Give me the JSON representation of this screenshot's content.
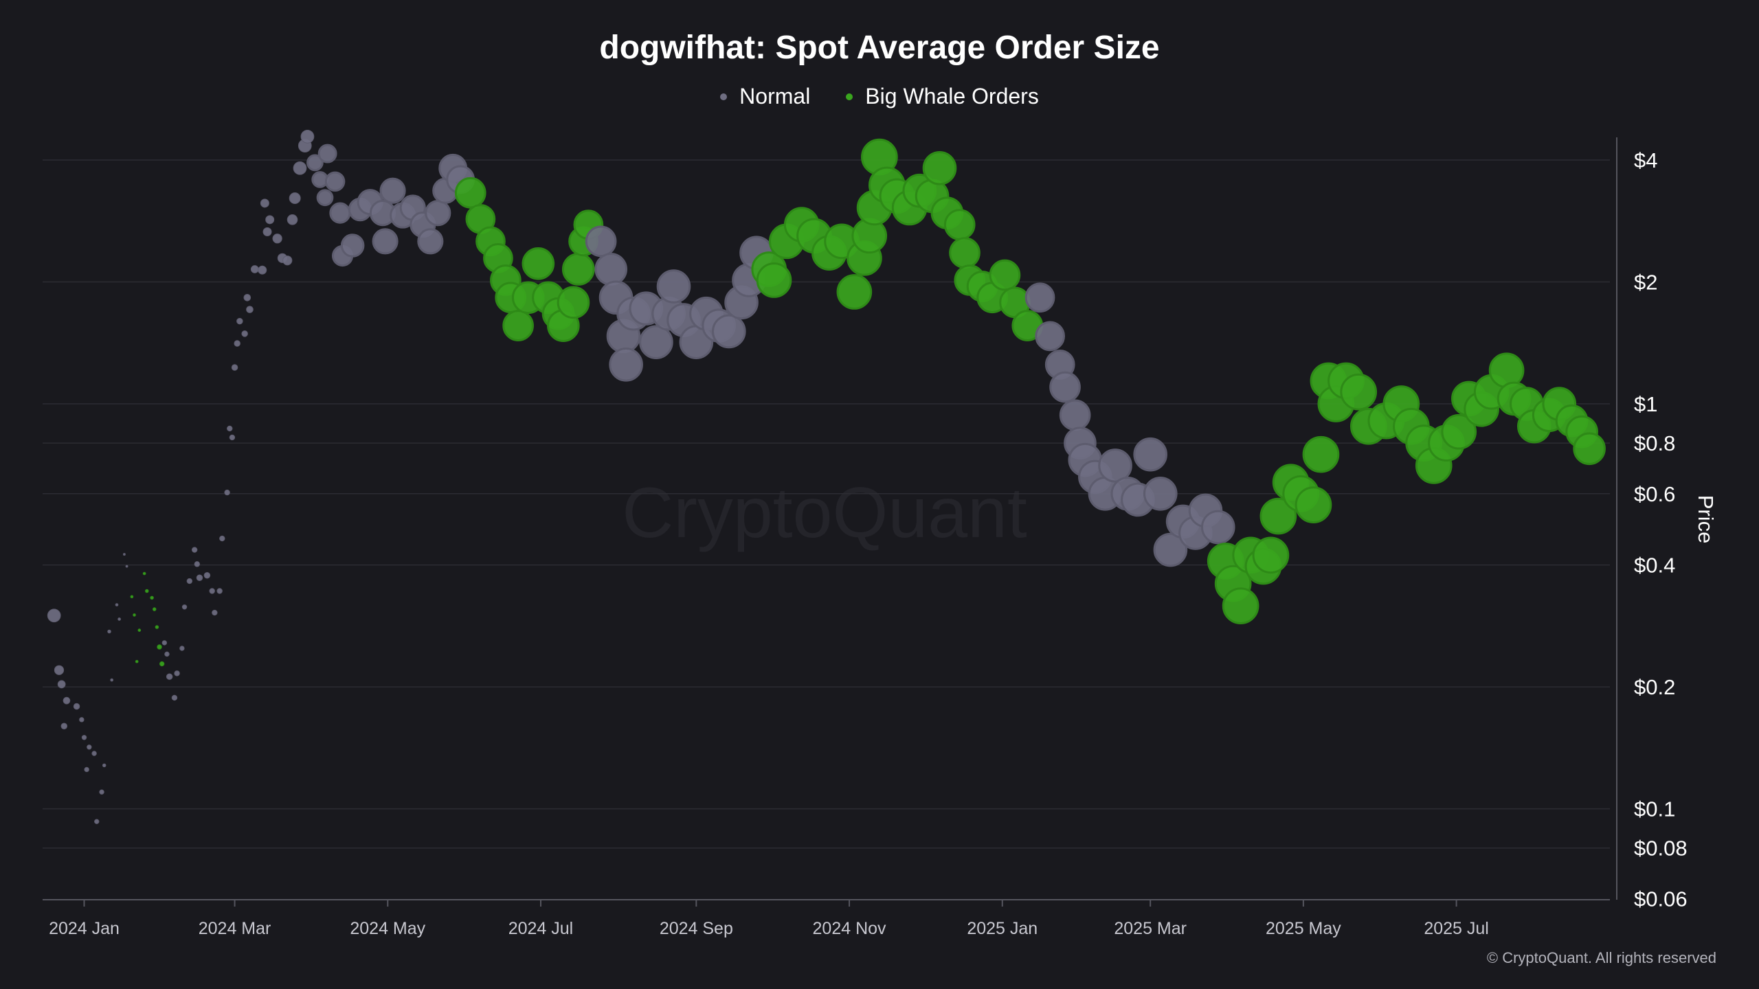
{
  "chart_data": {
    "type": "scatter",
    "title": "dogwifhat: Spot Average Order Size",
    "ylabel": "Price",
    "xlabel": "",
    "y_scale": "log",
    "ylim": [
      0.06,
      4.55
    ],
    "xlim": [
      "2023-12-16",
      "2025-09-05"
    ],
    "grid": true,
    "legend_position": "top",
    "watermark": "CryptoQuant",
    "copyright": "© CryptoQuant. All rights reserved",
    "colors": {
      "normal": "#6f6e82",
      "whale": "#3aa51e",
      "background": "#19191e"
    },
    "legend": [
      {
        "key": "normal",
        "label": "Normal"
      },
      {
        "key": "whale",
        "label": "Big Whale Orders"
      }
    ],
    "y_ticks": [
      {
        "value": 4,
        "label": "$4"
      },
      {
        "value": 2,
        "label": "$2"
      },
      {
        "value": 1,
        "label": "$1"
      },
      {
        "value": 0.8,
        "label": "$0.8"
      },
      {
        "value": 0.6,
        "label": "$0.6"
      },
      {
        "value": 0.4,
        "label": "$0.4"
      },
      {
        "value": 0.2,
        "label": "$0.2"
      },
      {
        "value": 0.1,
        "label": "$0.1"
      },
      {
        "value": 0.08,
        "label": "$0.08"
      },
      {
        "value": 0.06,
        "label": "$0.06"
      }
    ],
    "x_ticks": [
      {
        "date": "2024-01-01",
        "label": "2024 Jan"
      },
      {
        "date": "2024-03-01",
        "label": "2024 Mar"
      },
      {
        "date": "2024-05-01",
        "label": "2024 May"
      },
      {
        "date": "2024-07-01",
        "label": "2024 Jul"
      },
      {
        "date": "2024-09-01",
        "label": "2024 Sep"
      },
      {
        "date": "2024-11-01",
        "label": "2024 Nov"
      },
      {
        "date": "2025-01-01",
        "label": "2025 Jan"
      },
      {
        "date": "2025-03-01",
        "label": "2025 Mar"
      },
      {
        "date": "2025-05-01",
        "label": "2025 May"
      },
      {
        "date": "2025-07-01",
        "label": "2025 Jul"
      }
    ],
    "point_fields": [
      "date",
      "price",
      "category",
      "relative_order_size"
    ],
    "points": [
      [
        "2023-12-20",
        0.3,
        "normal",
        2
      ],
      [
        "2023-12-22",
        0.22,
        "normal",
        1.6
      ],
      [
        "2023-12-23",
        0.203,
        "normal",
        1.4
      ],
      [
        "2023-12-25",
        0.185,
        "normal",
        1.3
      ],
      [
        "2023-12-24",
        0.16,
        "normal",
        1.2
      ],
      [
        "2023-12-29",
        0.179,
        "normal",
        1.2
      ],
      [
        "2023-12-31",
        0.166,
        "normal",
        1
      ],
      [
        "2024-01-01",
        0.15,
        "normal",
        1
      ],
      [
        "2024-01-03",
        0.142,
        "normal",
        1
      ],
      [
        "2024-01-05",
        0.137,
        "normal",
        1
      ],
      [
        "2024-01-02",
        0.125,
        "normal",
        1
      ],
      [
        "2024-01-06",
        0.093,
        "normal",
        1
      ],
      [
        "2024-01-08",
        0.11,
        "normal",
        1
      ],
      [
        "2024-01-09",
        0.128,
        "normal",
        0.8
      ],
      [
        "2024-01-12",
        0.208,
        "normal",
        0.7
      ],
      [
        "2024-01-11",
        0.274,
        "normal",
        0.8
      ],
      [
        "2024-01-14",
        0.319,
        "normal",
        0.7
      ],
      [
        "2024-01-15",
        0.294,
        "normal",
        0.7
      ],
      [
        "2024-01-17",
        0.425,
        "normal",
        0.6
      ],
      [
        "2024-01-18",
        0.397,
        "normal",
        0.6
      ],
      [
        "2024-01-20",
        0.334,
        "whale",
        0.7
      ],
      [
        "2024-01-21",
        0.301,
        "whale",
        0.7
      ],
      [
        "2024-01-22",
        0.231,
        "whale",
        0.7
      ],
      [
        "2024-01-23",
        0.276,
        "whale",
        0.7
      ],
      [
        "2024-01-25",
        0.381,
        "whale",
        0.7
      ],
      [
        "2024-01-26",
        0.345,
        "whale",
        0.8
      ],
      [
        "2024-01-28",
        0.332,
        "whale",
        0.8
      ],
      [
        "2024-01-29",
        0.311,
        "whale",
        0.8
      ],
      [
        "2024-01-30",
        0.281,
        "whale",
        0.8
      ],
      [
        "2024-01-31",
        0.251,
        "whale",
        1
      ],
      [
        "2024-02-01",
        0.228,
        "whale",
        1
      ],
      [
        "2024-02-02",
        0.257,
        "normal",
        1
      ],
      [
        "2024-02-03",
        0.241,
        "normal",
        1
      ],
      [
        "2024-02-04",
        0.212,
        "normal",
        1.2
      ],
      [
        "2024-02-06",
        0.188,
        "normal",
        1.1
      ],
      [
        "2024-02-07",
        0.216,
        "normal",
        1.1
      ],
      [
        "2024-02-09",
        0.249,
        "normal",
        1
      ],
      [
        "2024-02-10",
        0.315,
        "normal",
        1
      ],
      [
        "2024-02-12",
        0.365,
        "normal",
        1.1
      ],
      [
        "2024-02-14",
        0.436,
        "normal",
        1.1
      ],
      [
        "2024-02-15",
        0.402,
        "normal",
        1.1
      ],
      [
        "2024-02-16",
        0.372,
        "normal",
        1.2
      ],
      [
        "2024-02-19",
        0.377,
        "normal",
        1.2
      ],
      [
        "2024-02-21",
        0.345,
        "normal",
        1.1
      ],
      [
        "2024-02-22",
        0.305,
        "normal",
        1.1
      ],
      [
        "2024-02-24",
        0.345,
        "normal",
        1.1
      ],
      [
        "2024-02-25",
        0.465,
        "normal",
        1.1
      ],
      [
        "2024-02-27",
        0.604,
        "normal",
        1.1
      ],
      [
        "2024-02-28",
        0.869,
        "normal",
        1.1
      ],
      [
        "2024-02-29",
        0.826,
        "normal",
        1.1
      ],
      [
        "2024-03-01",
        1.23,
        "normal",
        1.2
      ],
      [
        "2024-03-02",
        1.41,
        "normal",
        1.2
      ],
      [
        "2024-03-03",
        1.6,
        "normal",
        1.2
      ],
      [
        "2024-03-05",
        1.49,
        "normal",
        1.2
      ],
      [
        "2024-03-06",
        1.83,
        "normal",
        1.3
      ],
      [
        "2024-03-07",
        1.71,
        "normal",
        1.3
      ],
      [
        "2024-03-09",
        2.15,
        "normal",
        1.4
      ],
      [
        "2024-03-12",
        2.14,
        "normal",
        1.5
      ],
      [
        "2024-03-13",
        3.13,
        "normal",
        1.5
      ],
      [
        "2024-03-15",
        2.85,
        "normal",
        1.5
      ],
      [
        "2024-03-14",
        2.66,
        "normal",
        1.5
      ],
      [
        "2024-03-18",
        2.56,
        "normal",
        1.6
      ],
      [
        "2024-03-20",
        2.29,
        "normal",
        1.6
      ],
      [
        "2024-03-22",
        2.26,
        "normal",
        1.6
      ],
      [
        "2024-03-24",
        2.85,
        "normal",
        1.7
      ],
      [
        "2024-03-25",
        3.22,
        "normal",
        1.8
      ],
      [
        "2024-03-27",
        3.82,
        "normal",
        2
      ],
      [
        "2024-03-29",
        4.34,
        "normal",
        2
      ],
      [
        "2024-03-30",
        4.57,
        "normal",
        2
      ],
      [
        "2024-04-02",
        3.94,
        "normal",
        2.2
      ],
      [
        "2024-04-04",
        3.58,
        "normal",
        2.2
      ],
      [
        "2024-04-06",
        3.23,
        "normal",
        2.2
      ],
      [
        "2024-04-07",
        4.15,
        "normal",
        2.4
      ],
      [
        "2024-04-10",
        3.54,
        "normal",
        2.5
      ],
      [
        "2024-04-12",
        2.96,
        "normal",
        2.6
      ],
      [
        "2024-04-13",
        2.32,
        "normal",
        2.6
      ],
      [
        "2024-04-17",
        2.46,
        "normal",
        2.8
      ],
      [
        "2024-04-20",
        3.02,
        "normal",
        2.8
      ],
      [
        "2024-04-24",
        3.15,
        "normal",
        3
      ],
      [
        "2024-04-29",
        2.96,
        "normal",
        3
      ],
      [
        "2024-04-30",
        2.52,
        "normal",
        3
      ],
      [
        "2024-05-03",
        3.36,
        "normal",
        3
      ],
      [
        "2024-05-07",
        2.92,
        "normal",
        3
      ],
      [
        "2024-05-11",
        3.05,
        "normal",
        3
      ],
      [
        "2024-05-15",
        2.77,
        "normal",
        3
      ],
      [
        "2024-05-18",
        2.52,
        "normal",
        3
      ],
      [
        "2024-05-21",
        2.96,
        "normal",
        3
      ],
      [
        "2024-05-24",
        3.36,
        "normal",
        3
      ],
      [
        "2024-05-27",
        3.82,
        "normal",
        3.2
      ],
      [
        "2024-05-30",
        3.58,
        "normal",
        3.2
      ],
      [
        "2024-06-03",
        3.32,
        "whale",
        3.4
      ],
      [
        "2024-06-07",
        2.86,
        "whale",
        3.3
      ],
      [
        "2024-06-11",
        2.52,
        "whale",
        3.3
      ],
      [
        "2024-06-14",
        2.29,
        "whale",
        3.3
      ],
      [
        "2024-06-17",
        2.02,
        "whale",
        3.4
      ],
      [
        "2024-06-19",
        1.83,
        "whale",
        3.4
      ],
      [
        "2024-06-22",
        1.56,
        "whale",
        3.4
      ],
      [
        "2024-06-26",
        1.83,
        "whale",
        3.5
      ],
      [
        "2024-06-30",
        2.22,
        "whale",
        3.5
      ],
      [
        "2024-07-04",
        1.83,
        "whale",
        3.5
      ],
      [
        "2024-07-08",
        1.67,
        "whale",
        3.5
      ],
      [
        "2024-07-10",
        1.56,
        "whale",
        3.5
      ],
      [
        "2024-07-14",
        1.78,
        "whale",
        3.5
      ],
      [
        "2024-07-16",
        2.15,
        "whale",
        3.5
      ],
      [
        "2024-07-18",
        2.52,
        "whale",
        3.3
      ],
      [
        "2024-07-20",
        2.77,
        "whale",
        3.3
      ],
      [
        "2024-07-25",
        2.52,
        "normal",
        3.4
      ],
      [
        "2024-07-29",
        2.15,
        "normal",
        3.5
      ],
      [
        "2024-07-31",
        1.83,
        "normal",
        3.6
      ],
      [
        "2024-08-03",
        1.47,
        "normal",
        3.6
      ],
      [
        "2024-08-04",
        1.25,
        "normal",
        3.6
      ],
      [
        "2024-08-07",
        1.67,
        "normal",
        3.6
      ],
      [
        "2024-08-12",
        1.72,
        "normal",
        3.6
      ],
      [
        "2024-08-16",
        1.42,
        "normal",
        3.6
      ],
      [
        "2024-08-21",
        1.67,
        "normal",
        3.6
      ],
      [
        "2024-08-23",
        1.95,
        "normal",
        3.6
      ],
      [
        "2024-08-27",
        1.61,
        "normal",
        3.6
      ],
      [
        "2024-09-01",
        1.42,
        "normal",
        3.6
      ],
      [
        "2024-09-05",
        1.67,
        "normal",
        3.6
      ],
      [
        "2024-09-10",
        1.56,
        "normal",
        3.6
      ],
      [
        "2024-09-14",
        1.51,
        "normal",
        3.6
      ],
      [
        "2024-09-19",
        1.78,
        "normal",
        3.6
      ],
      [
        "2024-09-22",
        2.02,
        "normal",
        3.6
      ],
      [
        "2024-09-25",
        2.36,
        "normal",
        3.6
      ],
      [
        "2024-09-30",
        2.15,
        "whale",
        3.7
      ],
      [
        "2024-10-02",
        2.02,
        "whale",
        3.7
      ],
      [
        "2024-10-07",
        2.52,
        "whale",
        3.7
      ],
      [
        "2024-10-13",
        2.77,
        "whale",
        3.7
      ],
      [
        "2024-10-18",
        2.6,
        "whale",
        3.7
      ],
      [
        "2024-10-24",
        2.36,
        "whale",
        3.7
      ],
      [
        "2024-10-29",
        2.52,
        "whale",
        3.7
      ],
      [
        "2024-11-03",
        1.89,
        "whale",
        3.7
      ],
      [
        "2024-11-07",
        2.29,
        "whale",
        3.7
      ],
      [
        "2024-11-09",
        2.6,
        "whale",
        3.7
      ],
      [
        "2024-11-11",
        3.05,
        "whale",
        3.7
      ],
      [
        "2024-11-13",
        4.07,
        "whale",
        3.8
      ],
      [
        "2024-11-16",
        3.47,
        "whale",
        3.8
      ],
      [
        "2024-11-20",
        3.26,
        "whale",
        3.7
      ],
      [
        "2024-11-25",
        3.05,
        "whale",
        3.7
      ],
      [
        "2024-11-29",
        3.36,
        "whale",
        3.6
      ],
      [
        "2024-12-04",
        3.26,
        "whale",
        3.6
      ],
      [
        "2024-12-07",
        3.82,
        "whale",
        3.6
      ],
      [
        "2024-12-10",
        2.96,
        "whale",
        3.5
      ],
      [
        "2024-12-15",
        2.77,
        "whale",
        3.4
      ],
      [
        "2024-12-17",
        2.36,
        "whale",
        3.4
      ],
      [
        "2024-12-19",
        2.02,
        "whale",
        3.4
      ],
      [
        "2024-12-24",
        1.95,
        "whale",
        3.4
      ],
      [
        "2024-12-28",
        1.83,
        "whale",
        3.4
      ],
      [
        "2025-01-02",
        2.08,
        "whale",
        3.4
      ],
      [
        "2025-01-06",
        1.78,
        "whale",
        3.4
      ],
      [
        "2025-01-11",
        1.56,
        "whale",
        3.4
      ],
      [
        "2025-01-16",
        1.83,
        "normal",
        3.3
      ],
      [
        "2025-01-20",
        1.47,
        "normal",
        3.3
      ],
      [
        "2025-01-24",
        1.25,
        "normal",
        3.3
      ],
      [
        "2025-01-26",
        1.1,
        "normal",
        3.4
      ],
      [
        "2025-01-30",
        0.938,
        "normal",
        3.4
      ],
      [
        "2025-02-01",
        0.8,
        "normal",
        3.5
      ],
      [
        "2025-02-03",
        0.727,
        "normal",
        3.6
      ],
      [
        "2025-02-07",
        0.66,
        "normal",
        3.6
      ],
      [
        "2025-02-11",
        0.6,
        "normal",
        3.6
      ],
      [
        "2025-02-15",
        0.704,
        "normal",
        3.6
      ],
      [
        "2025-02-20",
        0.6,
        "normal",
        3.6
      ],
      [
        "2025-02-24",
        0.58,
        "normal",
        3.6
      ],
      [
        "2025-03-01",
        0.75,
        "normal",
        3.6
      ],
      [
        "2025-03-05",
        0.6,
        "normal",
        3.6
      ],
      [
        "2025-03-09",
        0.436,
        "normal",
        3.6
      ],
      [
        "2025-03-14",
        0.512,
        "normal",
        3.6
      ],
      [
        "2025-03-19",
        0.48,
        "normal",
        3.6
      ],
      [
        "2025-03-23",
        0.545,
        "normal",
        3.6
      ],
      [
        "2025-03-28",
        0.496,
        "normal",
        3.6
      ],
      [
        "2025-03-31",
        0.409,
        "whale",
        3.8
      ],
      [
        "2025-04-03",
        0.36,
        "whale",
        3.8
      ],
      [
        "2025-04-06",
        0.317,
        "whale",
        3.8
      ],
      [
        "2025-04-10",
        0.423,
        "whale",
        3.8
      ],
      [
        "2025-04-15",
        0.397,
        "whale",
        3.8
      ],
      [
        "2025-04-18",
        0.423,
        "whale",
        3.8
      ],
      [
        "2025-04-21",
        0.528,
        "whale",
        3.8
      ],
      [
        "2025-04-26",
        0.64,
        "whale",
        3.8
      ],
      [
        "2025-04-30",
        0.6,
        "whale",
        3.8
      ],
      [
        "2025-05-05",
        0.563,
        "whale",
        3.8
      ],
      [
        "2025-05-08",
        0.75,
        "whale",
        3.8
      ],
      [
        "2025-05-11",
        1.14,
        "whale",
        3.8
      ],
      [
        "2025-05-14",
        1.0,
        "whale",
        3.8
      ],
      [
        "2025-05-18",
        1.14,
        "whale",
        3.8
      ],
      [
        "2025-05-23",
        1.07,
        "whale",
        3.8
      ],
      [
        "2025-05-27",
        0.88,
        "whale",
        3.8
      ],
      [
        "2025-06-03",
        0.908,
        "whale",
        3.8
      ],
      [
        "2025-06-09",
        1.0,
        "whale",
        3.8
      ],
      [
        "2025-06-13",
        0.88,
        "whale",
        3.8
      ],
      [
        "2025-06-18",
        0.8,
        "whale",
        3.8
      ],
      [
        "2025-06-22",
        0.704,
        "whale",
        3.8
      ],
      [
        "2025-06-27",
        0.8,
        "whale",
        3.8
      ],
      [
        "2025-07-02",
        0.853,
        "whale",
        3.7
      ],
      [
        "2025-07-06",
        1.03,
        "whale",
        3.7
      ],
      [
        "2025-07-11",
        0.97,
        "whale",
        3.7
      ],
      [
        "2025-07-15",
        1.07,
        "whale",
        3.7
      ],
      [
        "2025-07-21",
        1.21,
        "whale",
        3.7
      ],
      [
        "2025-07-24",
        1.03,
        "whale",
        3.6
      ],
      [
        "2025-07-29",
        1.0,
        "whale",
        3.6
      ],
      [
        "2025-08-01",
        0.88,
        "whale",
        3.6
      ],
      [
        "2025-08-07",
        0.938,
        "whale",
        3.6
      ],
      [
        "2025-08-11",
        1.0,
        "whale",
        3.6
      ],
      [
        "2025-08-16",
        0.908,
        "whale",
        3.5
      ],
      [
        "2025-08-20",
        0.853,
        "whale",
        3.5
      ],
      [
        "2025-08-23",
        0.775,
        "whale",
        3.5
      ]
    ]
  }
}
